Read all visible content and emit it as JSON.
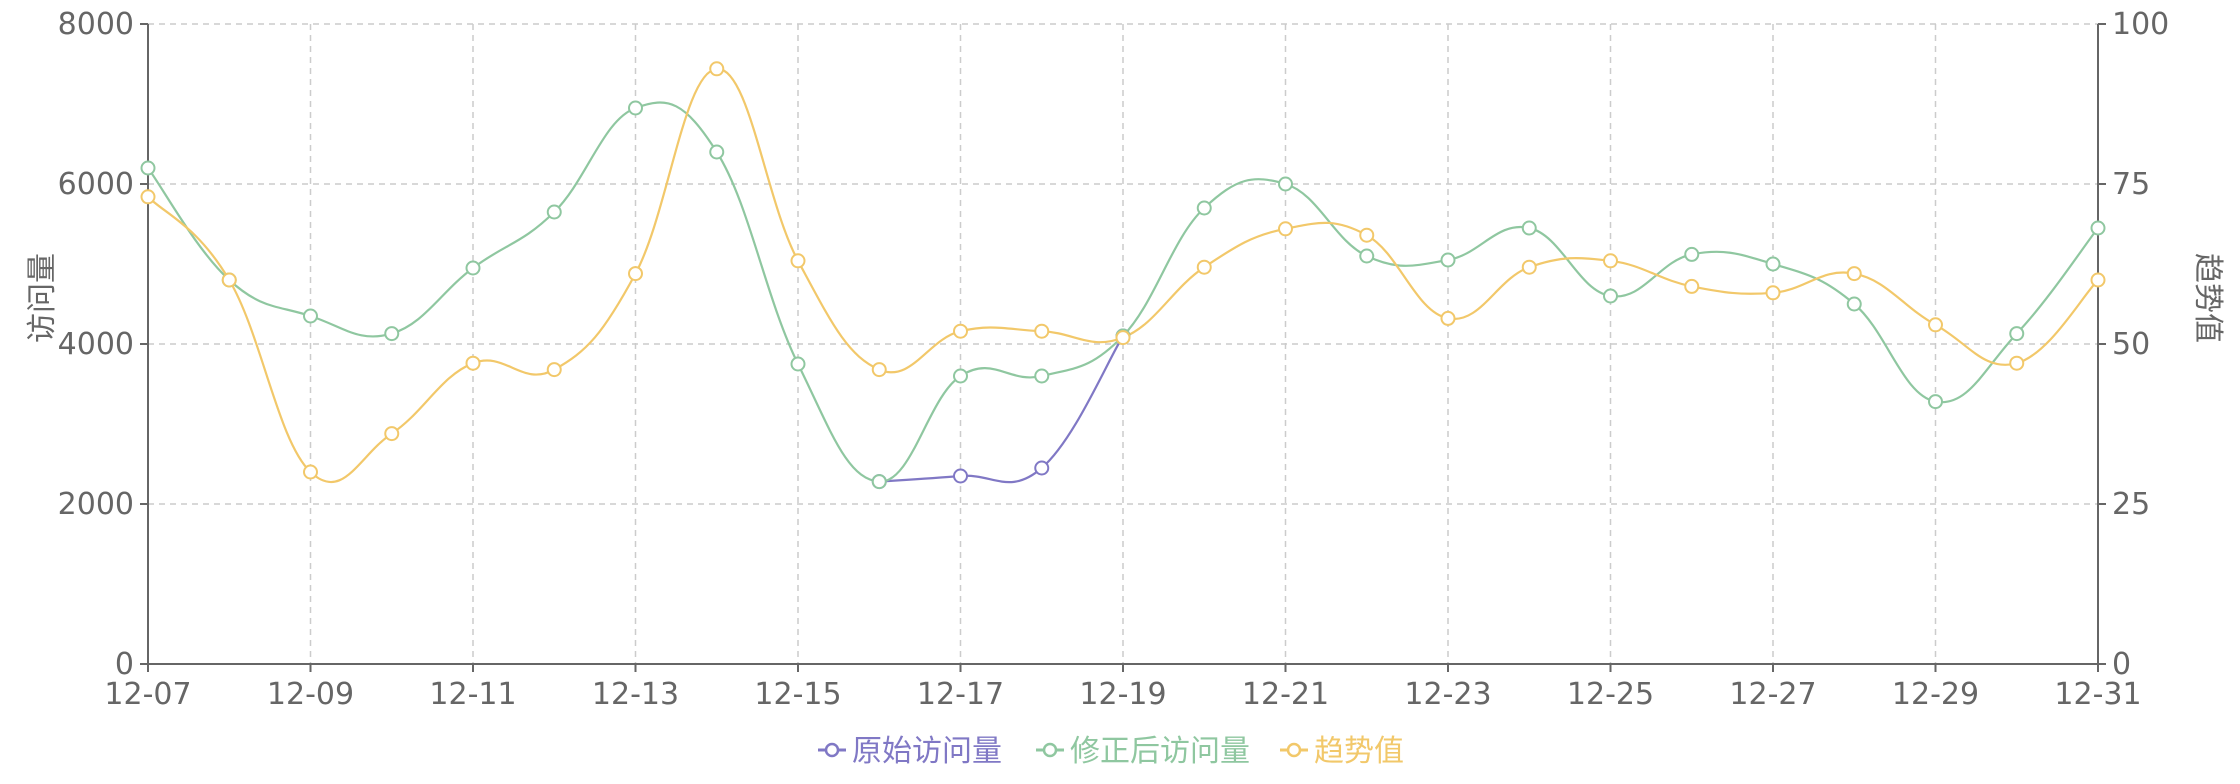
{
  "chart_data": {
    "type": "line",
    "x": [
      "12-07",
      "12-08",
      "12-09",
      "12-10",
      "12-11",
      "12-12",
      "12-13",
      "12-14",
      "12-15",
      "12-16",
      "12-17",
      "12-18",
      "12-19",
      "12-20",
      "12-21",
      "12-22",
      "12-23",
      "12-24",
      "12-25",
      "12-26",
      "12-27",
      "12-28",
      "12-29",
      "12-30",
      "12-31"
    ],
    "x_tick_labels": [
      "12-07",
      "12-09",
      "12-11",
      "12-13",
      "12-15",
      "12-17",
      "12-19",
      "12-21",
      "12-23",
      "12-25",
      "12-27",
      "12-29",
      "12-31"
    ],
    "ylabel_left": "访问量",
    "ylabel_right": "趋势值",
    "ylim_left": [
      0,
      8000
    ],
    "ylim_right": [
      0,
      100
    ],
    "yticks_left": [
      "0",
      "2000",
      "4000",
      "6000",
      "8000"
    ],
    "yticks_right": [
      "0",
      "25",
      "50",
      "75",
      "100"
    ],
    "grid": true,
    "legend_position": "bottom-center",
    "smooth": true,
    "series": [
      {
        "name": "原始访问量",
        "axis": "left",
        "color": "#8078c5",
        "values": [
          null,
          null,
          null,
          null,
          null,
          null,
          null,
          null,
          null,
          2280,
          2350,
          2450,
          4100,
          null,
          null,
          null,
          null,
          null,
          null,
          null,
          null,
          null,
          null,
          null,
          null
        ]
      },
      {
        "name": "修正后访问量",
        "axis": "left",
        "color": "#8fc7a0",
        "values": [
          6200,
          4800,
          4350,
          4130,
          4950,
          5650,
          6950,
          6400,
          3750,
          2280,
          3600,
          3600,
          4100,
          5700,
          6000,
          5100,
          5050,
          5450,
          4600,
          5120,
          5000,
          4500,
          3280,
          4130,
          5450
        ]
      },
      {
        "name": "趋势值",
        "axis": "right",
        "color": "#f2c86a",
        "values": [
          73,
          60,
          30,
          36,
          47,
          46,
          61,
          93,
          63,
          46,
          52,
          52,
          51,
          62,
          68,
          67,
          54,
          62,
          63,
          59,
          58,
          61,
          53,
          47,
          60
        ]
      }
    ]
  }
}
